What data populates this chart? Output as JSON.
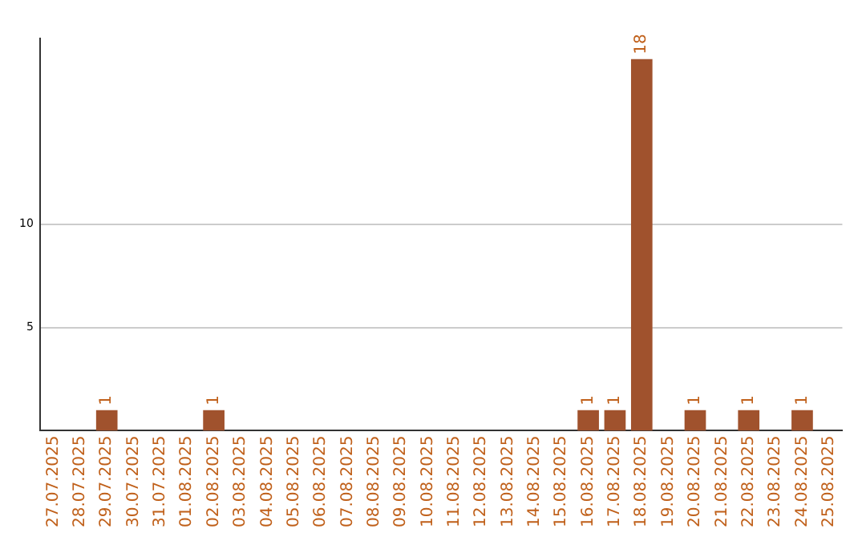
{
  "chart_data": {
    "type": "bar",
    "categories": [
      "27.07.2025",
      "28.07.2025",
      "29.07.2025",
      "30.07.2025",
      "31.07.2025",
      "01.08.2025",
      "02.08.2025",
      "03.08.2025",
      "04.08.2025",
      "05.08.2025",
      "06.08.2025",
      "07.08.2025",
      "08.08.2025",
      "09.08.2025",
      "10.08.2025",
      "11.08.2025",
      "12.08.2025",
      "13.08.2025",
      "14.08.2025",
      "15.08.2025",
      "16.08.2025",
      "17.08.2025",
      "18.08.2025",
      "19.08.2025",
      "20.08.2025",
      "21.08.2025",
      "22.08.2025",
      "23.08.2025",
      "24.08.2025",
      "25.08.2025"
    ],
    "values": [
      0,
      0,
      1,
      0,
      0,
      0,
      1,
      0,
      0,
      0,
      0,
      0,
      0,
      0,
      0,
      0,
      0,
      0,
      0,
      0,
      1,
      1,
      18,
      0,
      1,
      0,
      1,
      0,
      1,
      0
    ],
    "value_labels": [
      null,
      null,
      "1",
      null,
      null,
      null,
      "1",
      null,
      null,
      null,
      null,
      null,
      null,
      null,
      null,
      null,
      null,
      null,
      null,
      null,
      "1",
      "1",
      "18",
      null,
      "1",
      null,
      "1",
      null,
      "1",
      null
    ],
    "color": "#a0522d",
    "ylim": [
      0,
      19
    ],
    "yticks": [
      5,
      10
    ],
    "grid": "y",
    "legend": false
  }
}
